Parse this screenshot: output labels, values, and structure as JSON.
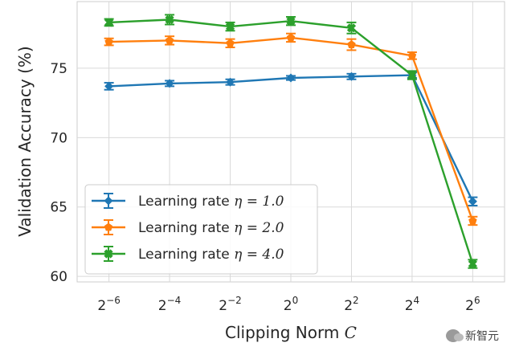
{
  "chart_data": {
    "type": "line",
    "title": "",
    "xlabel": "Clipping Norm C",
    "ylabel": "Validation Accuracy (%)",
    "x_exponents": [
      -6,
      -4,
      -2,
      0,
      2,
      4,
      6
    ],
    "x_tick_labels": [
      {
        "base": "2",
        "exp": "−6"
      },
      {
        "base": "2",
        "exp": "−4"
      },
      {
        "base": "2",
        "exp": "−2"
      },
      {
        "base": "2",
        "exp": "0"
      },
      {
        "base": "2",
        "exp": "2"
      },
      {
        "base": "2",
        "exp": "4"
      },
      {
        "base": "2",
        "exp": "6"
      }
    ],
    "y_ticks": [
      60,
      65,
      70,
      75
    ],
    "ylim": [
      59.6,
      79.8
    ],
    "grid": true,
    "legend_position": "lower-left",
    "series": [
      {
        "name": "Learning rate η = 1.0",
        "label_prefix": "Learning rate ",
        "label_math": "η = 1.0",
        "color": "#1f77b4",
        "marker": "diamond",
        "values": [
          73.7,
          73.9,
          74.0,
          74.3,
          74.4,
          74.5,
          65.4
        ],
        "errors": [
          0.25,
          0.2,
          0.2,
          0.15,
          0.2,
          0.2,
          0.3
        ]
      },
      {
        "name": "Learning rate η = 2.0",
        "label_prefix": "Learning rate ",
        "label_math": "η = 2.0",
        "color": "#ff7f0e",
        "marker": "pentagon",
        "values": [
          76.9,
          77.0,
          76.8,
          77.2,
          76.7,
          75.9,
          64.0
        ],
        "errors": [
          0.25,
          0.3,
          0.3,
          0.3,
          0.4,
          0.25,
          0.3
        ]
      },
      {
        "name": "Learning rate η = 4.0",
        "label_prefix": "Learning rate ",
        "label_math": "η = 4.0",
        "color": "#2ca02c",
        "marker": "x-filled",
        "values": [
          78.3,
          78.5,
          78.0,
          78.4,
          77.9,
          74.5,
          60.9
        ],
        "errors": [
          0.25,
          0.35,
          0.3,
          0.3,
          0.4,
          0.3,
          0.3
        ]
      }
    ]
  },
  "watermark": {
    "text": "新智元"
  }
}
